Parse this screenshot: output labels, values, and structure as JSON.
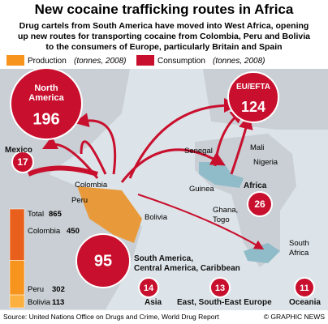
{
  "header": {
    "title": "New cocaine trafficking routes in Africa",
    "subtitle_lines": [
      "Drug cartels from South America have moved into West Africa, opening",
      "up new routes for transporting cocaine from Colombia, Peru and Bolivia",
      "to the consumers of Europe, particularly Britain and Spain"
    ]
  },
  "legend": {
    "production": "Production",
    "production_note": "(tonnes, 2008)",
    "consumption": "Consumption",
    "consumption_note": "(tonnes, 2008)"
  },
  "consumption": [
    {
      "label_lines": [
        "North",
        "America"
      ],
      "value": 196
    },
    {
      "label_lines": [
        "EU/EFTA"
      ],
      "value": 124
    },
    {
      "label_lines": [
        "Mexico"
      ],
      "value": 17
    },
    {
      "label_lines": [
        "Africa"
      ],
      "value": 26
    },
    {
      "label_lines": [
        "South America,",
        "Central America, Caribbean"
      ],
      "value": 95
    },
    {
      "label_lines": [
        "Asia"
      ],
      "value": 14
    },
    {
      "label_lines": [
        "East, South-East Europe"
      ],
      "value": 13
    },
    {
      "label_lines": [
        "Oceania"
      ],
      "value": 11
    }
  ],
  "places": [
    "Colombia",
    "Peru",
    "Bolivia",
    "Senegal",
    "Guinea",
    "Mali",
    "Nigeria",
    "Ghana,",
    "Togo",
    "South",
    "Africa"
  ],
  "production": {
    "total_label": "Total",
    "total": 865,
    "countries": [
      {
        "name": "Colombia",
        "value": 450
      },
      {
        "name": "Peru",
        "value": 302
      },
      {
        "name": "Bolivia",
        "value": 113
      }
    ]
  },
  "footer": {
    "source": "Source: United Nations Office on Drugs and Crime, World Drug Report",
    "credit": "© GRAPHIC NEWS"
  }
}
